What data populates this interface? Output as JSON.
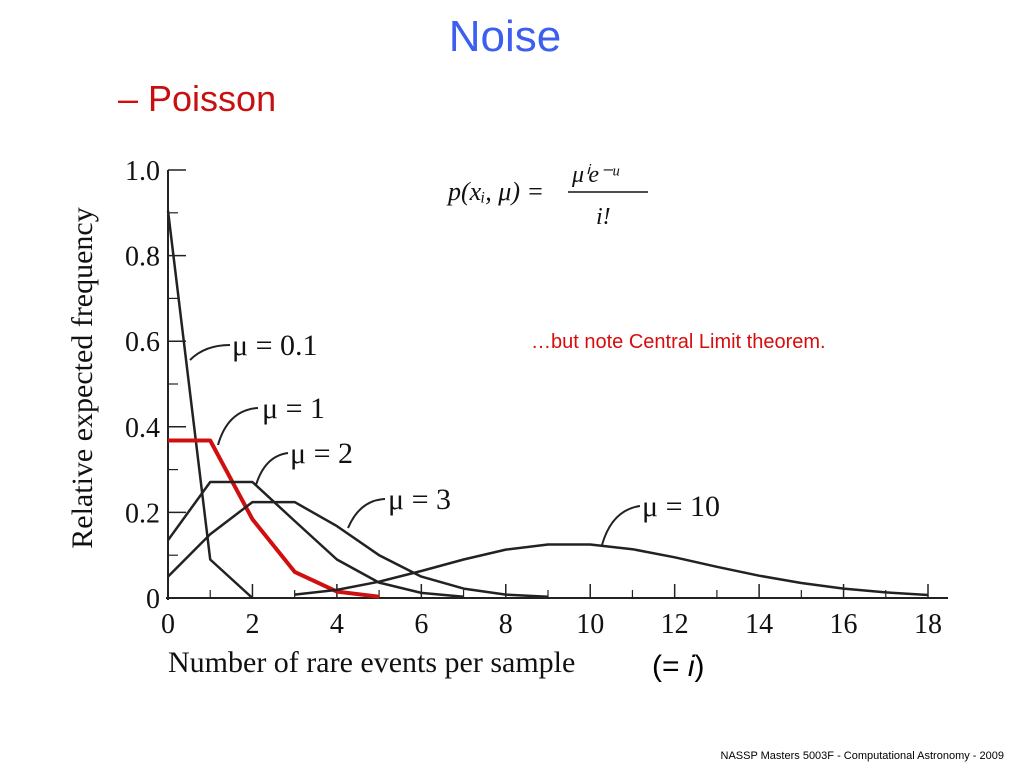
{
  "slide": {
    "title": "Noise",
    "subtitle": "– Poisson",
    "note": "…but note Central Limit theorem.",
    "equal_i_prefix": "(= ",
    "equal_i_var": "i",
    "equal_i_suffix": ")",
    "footer": "NASSP Masters 5003F - Computational Astronomy - 2009"
  },
  "colors": {
    "title": "#3d5ff0",
    "subtitle": "#c81010",
    "note": "#d80c0c",
    "highlight_series": "#d01010",
    "series": "#222222"
  },
  "formula": {
    "lhs": "p(xᵢ, μ) =",
    "numerator": "μⁱe⁻ᵘ",
    "denominator": "i!"
  },
  "chart_data": {
    "type": "line",
    "xlabel": "Number of rare events per sample",
    "ylabel": "Relative expected frequency",
    "xlim": [
      0,
      18
    ],
    "ylim": [
      0,
      1.0
    ],
    "x_ticks": [
      "0",
      "2",
      "4",
      "6",
      "8",
      "10",
      "12",
      "14",
      "16",
      "18"
    ],
    "y_ticks": [
      "0",
      "0.2",
      "0.4",
      "0.6",
      "0.8",
      "1.0"
    ],
    "series": [
      {
        "name": "μ = 0.1",
        "x": [
          0,
          1,
          2
        ],
        "y": [
          0.905,
          0.09,
          0.0
        ]
      },
      {
        "name": "μ = 1",
        "x": [
          0,
          1,
          2,
          3,
          4,
          5
        ],
        "y": [
          0.368,
          0.368,
          0.184,
          0.061,
          0.015,
          0.003
        ],
        "highlight": true
      },
      {
        "name": "μ = 2",
        "x": [
          0,
          1,
          2,
          3,
          4,
          5,
          6,
          7
        ],
        "y": [
          0.135,
          0.271,
          0.271,
          0.18,
          0.09,
          0.036,
          0.012,
          0.003
        ]
      },
      {
        "name": "μ = 3",
        "x": [
          0,
          1,
          2,
          3,
          4,
          5,
          6,
          7,
          8,
          9
        ],
        "y": [
          0.05,
          0.149,
          0.224,
          0.224,
          0.168,
          0.1,
          0.05,
          0.022,
          0.008,
          0.003
        ]
      },
      {
        "name": "μ = 10",
        "x": [
          3,
          4,
          5,
          6,
          7,
          8,
          9,
          10,
          11,
          12,
          13,
          14,
          15,
          16,
          17,
          18
        ],
        "y": [
          0.008,
          0.019,
          0.038,
          0.063,
          0.09,
          0.113,
          0.125,
          0.125,
          0.114,
          0.095,
          0.073,
          0.052,
          0.035,
          0.022,
          0.013,
          0.007
        ]
      }
    ]
  }
}
